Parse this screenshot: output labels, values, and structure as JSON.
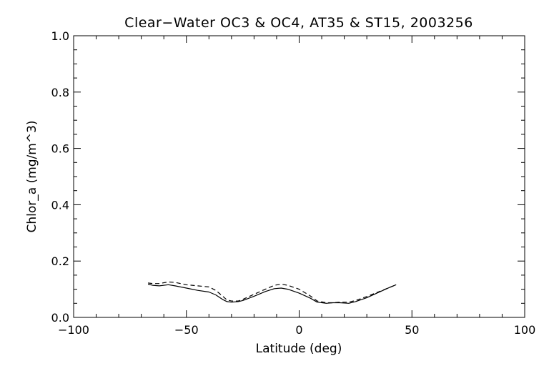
{
  "chart_data": {
    "type": "line",
    "title": "Clear−Water OC3 & OC4, AT35 & ST15, 2003256",
    "xlabel": "Latitude (deg)",
    "ylabel": "Chlor_a (mg/m^3)",
    "xlim": [
      -100,
      100
    ],
    "ylim": [
      0.0,
      1.0
    ],
    "x_ticks": [
      -100,
      -50,
      0,
      50,
      100
    ],
    "x_tick_labels": [
      "−100",
      "−50",
      "0",
      "50",
      "100"
    ],
    "y_ticks": [
      0.0,
      0.2,
      0.4,
      0.6,
      0.8,
      1.0
    ],
    "y_tick_labels": [
      "0.0",
      "0.2",
      "0.4",
      "0.6",
      "0.8",
      "1.0"
    ],
    "grid": false,
    "series": [
      {
        "style": "solid",
        "x": [
          -67,
          -65,
          -62,
          -58,
          -55,
          -50,
          -45,
          -40,
          -37,
          -34,
          -32,
          -30,
          -27,
          -25,
          -20,
          -15,
          -11,
          -8,
          -5,
          0,
          5,
          8,
          12,
          15,
          18,
          22,
          25,
          30,
          35,
          40,
          43
        ],
        "y": [
          0.118,
          0.114,
          0.112,
          0.116,
          0.112,
          0.104,
          0.096,
          0.09,
          0.08,
          0.064,
          0.056,
          0.054,
          0.056,
          0.06,
          0.075,
          0.092,
          0.102,
          0.104,
          0.1,
          0.086,
          0.068,
          0.054,
          0.05,
          0.052,
          0.052,
          0.05,
          0.056,
          0.07,
          0.088,
          0.106,
          0.116
        ]
      },
      {
        "style": "dashed",
        "x": [
          -67,
          -65,
          -62,
          -58,
          -55,
          -50,
          -45,
          -40,
          -37,
          -34,
          -32,
          -30,
          -27,
          -25,
          -20,
          -15,
          -11,
          -8,
          -5,
          0,
          5,
          8,
          12,
          15,
          18,
          22,
          25,
          30,
          35,
          40,
          43
        ],
        "y": [
          0.122,
          0.12,
          0.12,
          0.126,
          0.124,
          0.116,
          0.112,
          0.108,
          0.096,
          0.076,
          0.062,
          0.058,
          0.058,
          0.064,
          0.082,
          0.1,
          0.114,
          0.118,
          0.114,
          0.1,
          0.076,
          0.058,
          0.052,
          0.052,
          0.054,
          0.054,
          0.06,
          0.074,
          0.09,
          0.106,
          0.116
        ]
      }
    ]
  }
}
